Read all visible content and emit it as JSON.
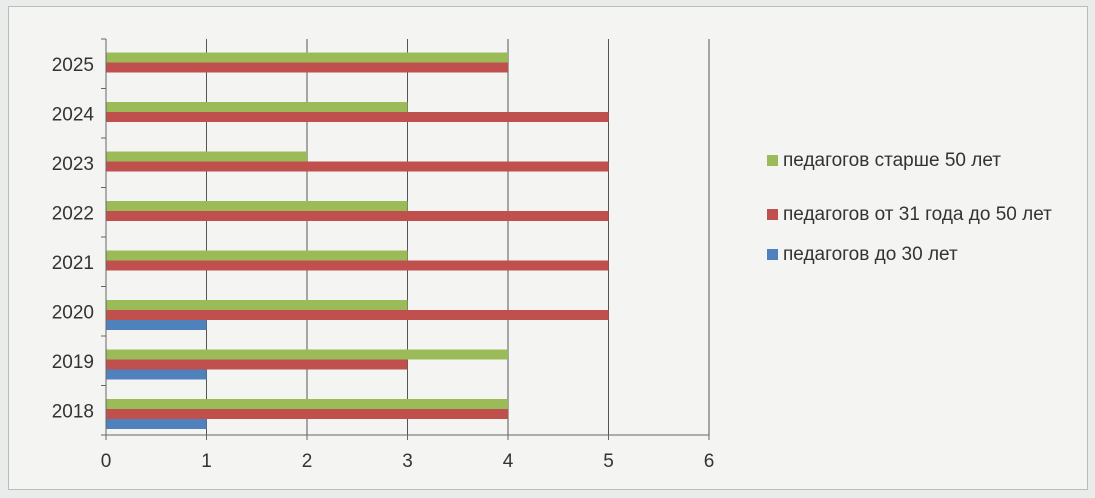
{
  "chart_data": {
    "type": "bar",
    "orientation": "horizontal",
    "categories": [
      "2018",
      "2019",
      "2020",
      "2021",
      "2022",
      "2023",
      "2024",
      "2025"
    ],
    "series": [
      {
        "name": "педагогов до 30 лет",
        "color": "#4f81bd",
        "values": [
          1,
          1,
          1,
          0,
          0,
          0,
          0,
          0
        ]
      },
      {
        "name": "педагогов от 31 года до 50 лет",
        "color": "#c0504d",
        "values": [
          4,
          3,
          5,
          5,
          5,
          5,
          5,
          4
        ]
      },
      {
        "name": "педагогов старше 50 лет",
        "color": "#9bbb59",
        "values": [
          4,
          4,
          3,
          3,
          3,
          2,
          3,
          4
        ]
      }
    ],
    "xlim": [
      0,
      6
    ],
    "xticks": [
      "0",
      "1",
      "2",
      "3",
      "4",
      "5",
      "6"
    ],
    "grid": true,
    "legend_position": "right",
    "title": "",
    "xlabel": "",
    "ylabel": ""
  },
  "legend": {
    "items": [
      {
        "label": "педагогов старше 50 лет",
        "color": "#9bbb59"
      },
      {
        "label": "педагогов от 31 года до 50 лет",
        "color": "#c0504d"
      },
      {
        "label": "педагогов до 30 лет",
        "color": "#4f81bd"
      }
    ]
  }
}
